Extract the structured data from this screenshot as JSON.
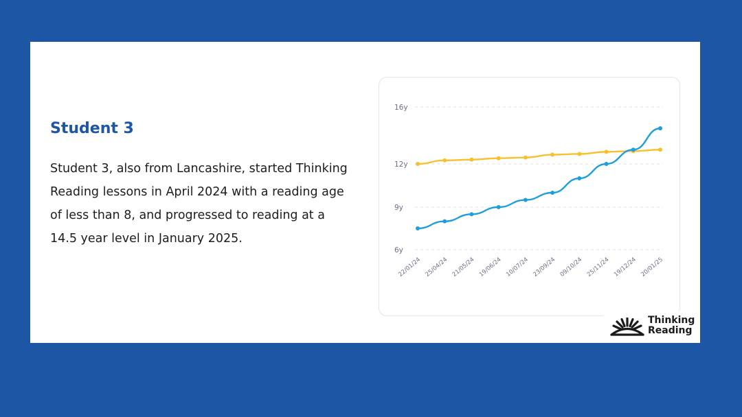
{
  "content": {
    "heading": "Student 3",
    "body": "Student 3, also from Lancashire, started Thinking Reading lessons in April 2024 with a reading age of less than 8, and progressed to reading at a 14.5 year level in January 2025."
  },
  "logo": {
    "line1": "Thinking",
    "line2": "Reading"
  },
  "colors": {
    "background": "#1e56a6",
    "heading": "#1e56a6",
    "series_blue": "#1e9fdc",
    "series_yellow": "#f6c02e"
  },
  "chart_data": {
    "type": "line",
    "x": [
      "22/01/24",
      "25/04/24",
      "21/05/24",
      "19/06/24",
      "10/07/24",
      "23/09/24",
      "09/10/24",
      "25/11/24",
      "19/12/24",
      "20/01/25"
    ],
    "y_ticks": [
      "6y",
      "9y",
      "12y",
      "16y"
    ],
    "ylim": [
      6,
      16
    ],
    "grid": true,
    "series": [
      {
        "color": "#f6c02e",
        "values": [
          12.0,
          12.25,
          12.3,
          12.4,
          12.45,
          12.65,
          12.7,
          12.85,
          12.9,
          13.0
        ]
      },
      {
        "color": "#1e9fdc",
        "values": [
          7.5,
          8.0,
          8.5,
          9.0,
          9.5,
          10.0,
          11.0,
          12.0,
          13.0,
          14.5
        ]
      }
    ]
  }
}
